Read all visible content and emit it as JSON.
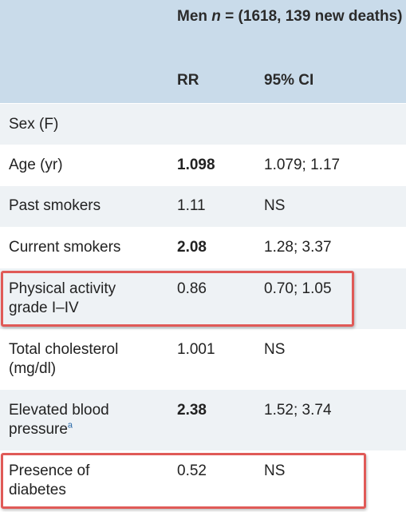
{
  "header": {
    "group_prefix": "Men ",
    "group_n": "n",
    "group_suffix": " = (1618, 139 new deaths)",
    "col_rr": "RR",
    "col_ci": "95% CI"
  },
  "rows": [
    {
      "label": "Sex (F)",
      "label_sup": "",
      "rr": "",
      "rr_bold": false,
      "ci": ""
    },
    {
      "label": "Age (yr)",
      "label_sup": "",
      "rr": "1.098",
      "rr_bold": true,
      "ci": "1.079; 1.17"
    },
    {
      "label": "Past smokers",
      "label_sup": "",
      "rr": "1.11",
      "rr_bold": false,
      "ci": "NS"
    },
    {
      "label": "Current smokers",
      "label_sup": "",
      "rr": "2.08",
      "rr_bold": true,
      "ci": "1.28; 3.37"
    },
    {
      "label": "Physical activity grade I–IV",
      "label_sup": "",
      "rr": "0.86",
      "rr_bold": false,
      "ci": "0.70; 1.05"
    },
    {
      "label": "Total cholesterol (mg/dl)",
      "label_sup": "",
      "rr": "1.001",
      "rr_bold": false,
      "ci": "NS"
    },
    {
      "label": "Elevated blood pressure",
      "label_sup": "a",
      "rr": "2.38",
      "rr_bold": true,
      "ci": "1.52; 3.74"
    },
    {
      "label": "Presence of diabetes",
      "label_sup": "",
      "rr": "0.52",
      "rr_bold": false,
      "ci": "NS"
    }
  ],
  "highlight_color": "#e05a57",
  "header_bg": "#c9dbea",
  "row_shade": "#eef2f5"
}
